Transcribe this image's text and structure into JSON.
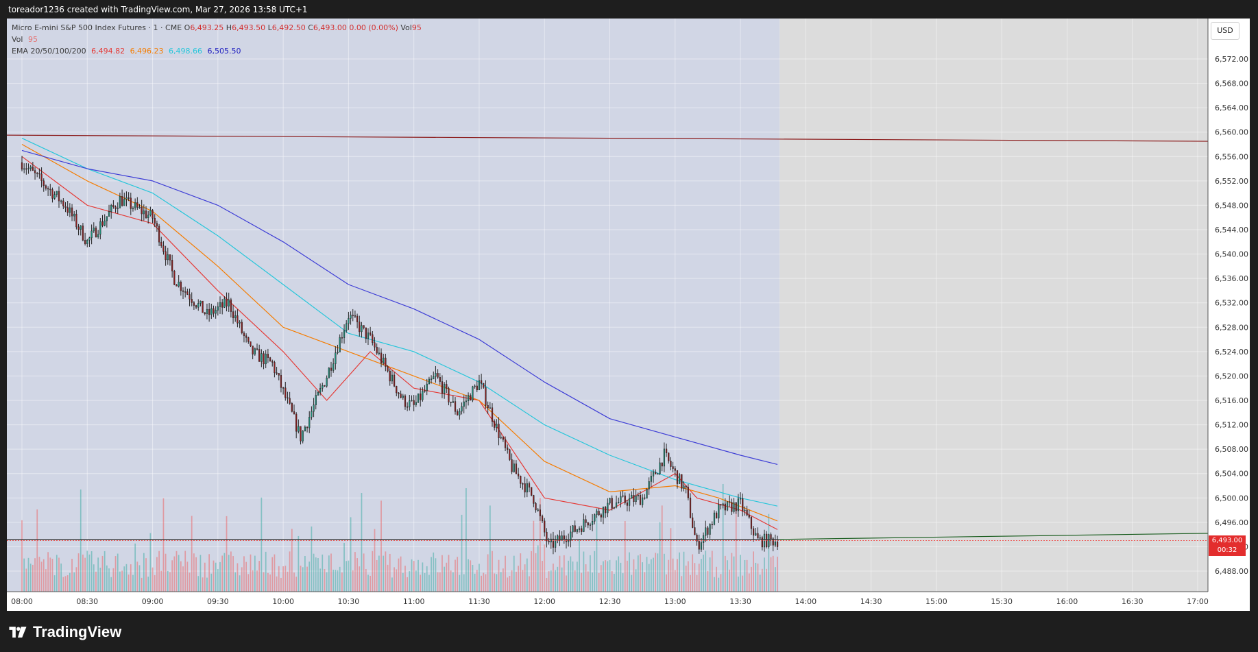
{
  "header": {
    "caption": "toreador1236 created with TradingView.com, Mar 27, 2026 13:58 UTC+1"
  },
  "legend": {
    "symbol": "Micro E-mini S&P 500 Index Futures · 1 · CME",
    "ohlc": [
      {
        "label": "O",
        "value": "6,493.25"
      },
      {
        "label": "H",
        "value": "6,493.50"
      },
      {
        "label": "L",
        "value": "6,492.50"
      },
      {
        "label": "C",
        "value": "6,493.00"
      }
    ],
    "change": "0.00 (0.00%)",
    "vol_label": "Vol",
    "vol_value": "95",
    "vol_row_label": "Vol",
    "ema_label": "EMA 20/50/100/200",
    "ema_values": [
      "6,494.82",
      "6,496.23",
      "6,498.66",
      "6,505.50"
    ]
  },
  "price_axis": {
    "currency": "USD",
    "last_price": "6,493.00",
    "countdown": "00:32"
  },
  "footer": {
    "brand": "TradingView"
  },
  "colors": {
    "up": "#26a69a",
    "down": "#ef5350",
    "ema20": "#e53935",
    "ema50": "#f57c00",
    "ema100": "#26c6da",
    "ema200": "#3d3dd6",
    "resistance": "#8b1a1a",
    "support": "#1b5e20",
    "session_shade": "#c9cfe0"
  },
  "chart_data": {
    "type": "candlestick",
    "interval": "1 minute",
    "ylim": [
      6486,
      6576
    ],
    "y_ticks": [
      "6,488.00",
      "6,492.00",
      "6,496.00",
      "6,500.00",
      "6,504.00",
      "6,508.00",
      "6,512.00",
      "6,516.00",
      "6,520.00",
      "6,524.00",
      "6,528.00",
      "6,532.00",
      "6,536.00",
      "6,540.00",
      "6,544.00",
      "6,548.00",
      "6,552.00",
      "6,556.00",
      "6,560.00",
      "6,564.00",
      "6,568.00",
      "6,572.00"
    ],
    "x_ticks": [
      "08:00",
      "08:30",
      "09:00",
      "09:30",
      "10:00",
      "10:30",
      "11:00",
      "11:30",
      "12:00",
      "12:30",
      "13:00",
      "13:30",
      "14:00",
      "14:30",
      "15:00",
      "15:30",
      "16:00",
      "16:30",
      "17:00"
    ],
    "price_path": [
      [
        "08:00",
        6555
      ],
      [
        "08:20",
        6548
      ],
      [
        "08:30",
        6542
      ],
      [
        "08:45",
        6549
      ],
      [
        "09:00",
        6546
      ],
      [
        "09:10",
        6536
      ],
      [
        "09:25",
        6530
      ],
      [
        "09:35",
        6532
      ],
      [
        "09:45",
        6524
      ],
      [
        "09:55",
        6522
      ],
      [
        "10:08",
        6510
      ],
      [
        "10:20",
        6520
      ],
      [
        "10:30",
        6530
      ],
      [
        "10:40",
        6526
      ],
      [
        "10:55",
        6516
      ],
      [
        "11:00",
        6515
      ],
      [
        "11:10",
        6520
      ],
      [
        "11:20",
        6514
      ],
      [
        "11:30",
        6519
      ],
      [
        "11:45",
        6505
      ],
      [
        "11:55",
        6500
      ],
      [
        "12:02",
        6492
      ],
      [
        "12:15",
        6495
      ],
      [
        "12:30",
        6499
      ],
      [
        "12:45",
        6500
      ],
      [
        "12:55",
        6507
      ],
      [
        "13:05",
        6501
      ],
      [
        "13:10",
        6492
      ],
      [
        "13:20",
        6498
      ],
      [
        "13:30",
        6499
      ],
      [
        "13:38",
        6493
      ],
      [
        "13:47",
        6493
      ]
    ],
    "ema_lines": [
      {
        "name": "EMA 20",
        "points": [
          [
            "08:00",
            6556
          ],
          [
            "08:30",
            6548
          ],
          [
            "09:00",
            6545
          ],
          [
            "09:30",
            6534
          ],
          [
            "10:00",
            6524
          ],
          [
            "10:20",
            6516
          ],
          [
            "10:40",
            6524
          ],
          [
            "11:00",
            6518
          ],
          [
            "11:30",
            6516
          ],
          [
            "11:45",
            6508
          ],
          [
            "12:00",
            6500
          ],
          [
            "12:30",
            6498
          ],
          [
            "12:50",
            6502
          ],
          [
            "13:00",
            6504
          ],
          [
            "13:10",
            6500
          ],
          [
            "13:30",
            6498
          ],
          [
            "13:47",
            6494.82
          ]
        ]
      },
      {
        "name": "EMA 50",
        "points": [
          [
            "08:00",
            6558
          ],
          [
            "08:30",
            6552
          ],
          [
            "09:00",
            6547
          ],
          [
            "09:30",
            6538
          ],
          [
            "10:00",
            6528
          ],
          [
            "10:30",
            6524
          ],
          [
            "11:00",
            6520
          ],
          [
            "11:30",
            6516
          ],
          [
            "12:00",
            6506
          ],
          [
            "12:30",
            6501
          ],
          [
            "13:00",
            6502
          ],
          [
            "13:20",
            6500
          ],
          [
            "13:47",
            6496.23
          ]
        ]
      },
      {
        "name": "EMA 100",
        "points": [
          [
            "08:00",
            6559
          ],
          [
            "08:30",
            6554
          ],
          [
            "09:00",
            6550
          ],
          [
            "09:30",
            6543
          ],
          [
            "10:00",
            6535
          ],
          [
            "10:30",
            6527
          ],
          [
            "11:00",
            6524
          ],
          [
            "11:30",
            6519
          ],
          [
            "12:00",
            6512
          ],
          [
            "12:30",
            6507
          ],
          [
            "13:00",
            6503
          ],
          [
            "13:30",
            6500
          ],
          [
            "13:47",
            6498.66
          ]
        ]
      },
      {
        "name": "EMA 200",
        "points": [
          [
            "08:00",
            6557
          ],
          [
            "08:30",
            6554
          ],
          [
            "09:00",
            6552
          ],
          [
            "09:30",
            6548
          ],
          [
            "10:00",
            6542
          ],
          [
            "10:30",
            6535
          ],
          [
            "11:00",
            6531
          ],
          [
            "11:30",
            6526
          ],
          [
            "12:00",
            6519
          ],
          [
            "12:30",
            6513
          ],
          [
            "13:00",
            6510
          ],
          [
            "13:30",
            6507
          ],
          [
            "13:47",
            6505.5
          ]
        ]
      }
    ],
    "horizontal_lines": [
      {
        "role": "resistance",
        "start": 6559.5,
        "end": 6558.5
      },
      {
        "role": "support",
        "start": 6493.2,
        "end": 6494.2
      },
      {
        "role": "last-price",
        "value": 6493.0
      }
    ],
    "grid": true,
    "volume_pane": true
  }
}
